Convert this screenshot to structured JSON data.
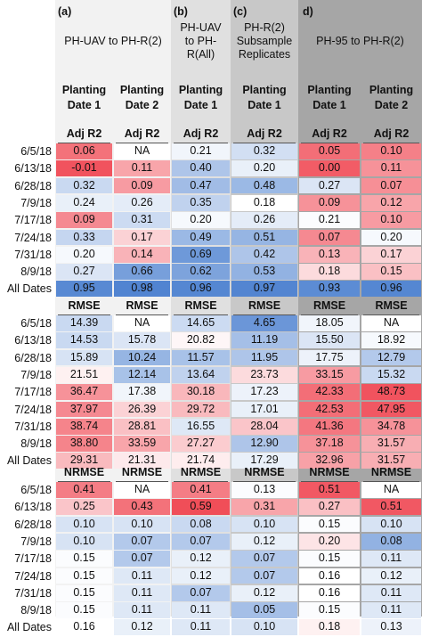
{
  "panels": [
    {
      "tag": "(a)",
      "title": "PH-UAV to PH-R(2)",
      "color": "#f2f2f2"
    },
    {
      "tag": "(b)",
      "title": "PH-UAV to PH-R(All)",
      "title_lines": [
        "PH-UAV",
        "to PH-",
        "R(All)"
      ],
      "color": "#e0e0e0"
    },
    {
      "tag": "(c)",
      "title": "PH-R(2) Subsample Replicates",
      "title_lines": [
        "PH-R(2)",
        "Subsample",
        "Replicates"
      ],
      "color": "#c8c8c8"
    },
    {
      "tag": "d)",
      "title": "PH-95 to PH-R(2)",
      "color": "#a6a6a6"
    }
  ],
  "column_headers": [
    [
      "Planting",
      "Date 1"
    ],
    [
      "Planting",
      "Date 2"
    ],
    [
      "Planting",
      "Date 1"
    ],
    [
      "Planting",
      "Date 1"
    ],
    [
      "Planting",
      "Date 1"
    ],
    [
      "Planting",
      "Date 2"
    ]
  ],
  "row_labels": [
    "6/5/18",
    "6/13/18",
    "6/28/18",
    "7/9/18",
    "7/17/18",
    "7/24/18",
    "7/31/18",
    "8/9/18",
    "All Dates"
  ],
  "chart_data": {
    "type": "heatmap",
    "color_scale": {
      "low": "#4a7fcf",
      "mid": "#ffffff",
      "high": "#f04a55"
    },
    "sections": [
      {
        "metric": "Adj R2",
        "values": [
          [
            "0.06",
            "NA",
            "0.21",
            "0.32",
            "0.05",
            "0.10"
          ],
          [
            "-0.01",
            "0.11",
            "0.40",
            "0.20",
            "0.00",
            "0.11"
          ],
          [
            "0.32",
            "0.09",
            "0.47",
            "0.48",
            "0.27",
            "0.07"
          ],
          [
            "0.24",
            "0.26",
            "0.35",
            "0.18",
            "0.09",
            "0.12"
          ],
          [
            "0.09",
            "0.31",
            "0.20",
            "0.26",
            "0.21",
            "0.10"
          ],
          [
            "0.33",
            "0.17",
            "0.49",
            "0.51",
            "0.07",
            "0.20"
          ],
          [
            "0.20",
            "0.14",
            "0.69",
            "0.42",
            "0.13",
            "0.17"
          ],
          [
            "0.27",
            "0.66",
            "0.62",
            "0.53",
            "0.18",
            "0.15"
          ],
          [
            "0.95",
            "0.98",
            "0.96",
            "0.97",
            "0.93",
            "0.96"
          ]
        ],
        "fill": [
          [
            -0.78,
            null,
            0.08,
            0.25,
            -0.8,
            -0.7
          ],
          [
            -0.95,
            -0.5,
            0.45,
            0.12,
            -0.9,
            -0.6
          ],
          [
            0.3,
            -0.55,
            0.52,
            0.55,
            0.2,
            -0.62
          ],
          [
            0.12,
            0.15,
            0.35,
            0.0,
            -0.6,
            -0.5
          ],
          [
            -0.65,
            0.28,
            0.05,
            0.15,
            0.02,
            -0.55
          ],
          [
            0.32,
            -0.25,
            0.55,
            0.58,
            -0.65,
            0.05
          ],
          [
            0.05,
            -0.42,
            0.8,
            0.45,
            -0.42,
            -0.25
          ],
          [
            0.2,
            0.75,
            0.72,
            0.6,
            -0.2,
            -0.35
          ],
          [
            0.92,
            0.96,
            0.94,
            0.95,
            0.9,
            0.94
          ]
        ]
      },
      {
        "metric": "RMSE",
        "values": [
          [
            "14.39",
            "NA",
            "14.65",
            "4.65",
            "18.05",
            "NA"
          ],
          [
            "14.53",
            "15.78",
            "20.82",
            "11.19",
            "15.50",
            "18.92"
          ],
          [
            "15.89",
            "10.24",
            "11.57",
            "11.95",
            "17.75",
            "12.79"
          ],
          [
            "21.51",
            "12.14",
            "13.64",
            "23.73",
            "33.15",
            "15.32"
          ],
          [
            "36.47",
            "17.38",
            "30.18",
            "17.23",
            "42.33",
            "48.73"
          ],
          [
            "37.97",
            "26.39",
            "29.72",
            "17.01",
            "42.53",
            "47.95"
          ],
          [
            "38.74",
            "28.81",
            "16.55",
            "28.04",
            "41.36",
            "34.78"
          ],
          [
            "38.80",
            "33.59",
            "27.27",
            "12.90",
            "37.18",
            "31.57"
          ],
          [
            "29.31",
            "21.31",
            "21.74",
            "17.29",
            "32.96",
            "31.57"
          ]
        ],
        "fill": [
          [
            0.3,
            null,
            0.28,
            0.82,
            0.08,
            null
          ],
          [
            0.3,
            0.2,
            -0.05,
            0.5,
            0.2,
            0.05
          ],
          [
            0.22,
            0.58,
            0.48,
            0.45,
            0.1,
            0.42
          ],
          [
            -0.08,
            0.48,
            0.35,
            -0.2,
            -0.55,
            0.3
          ],
          [
            -0.6,
            0.08,
            -0.4,
            0.1,
            -0.8,
            -0.95
          ],
          [
            -0.65,
            -0.25,
            -0.38,
            0.12,
            -0.8,
            -0.92
          ],
          [
            -0.68,
            -0.35,
            0.18,
            -0.32,
            -0.75,
            -0.6
          ],
          [
            -0.68,
            -0.5,
            -0.28,
            0.45,
            -0.6,
            -0.45
          ],
          [
            -0.38,
            -0.12,
            -0.1,
            0.12,
            -0.52,
            -0.45
          ]
        ]
      },
      {
        "metric": "NRMSE",
        "values": [
          [
            "0.41",
            "NA",
            "0.41",
            "0.13",
            "0.51",
            "NA"
          ],
          [
            "0.25",
            "0.43",
            "0.59",
            "0.31",
            "0.27",
            "0.51"
          ],
          [
            "0.10",
            "0.10",
            "0.08",
            "0.10",
            "0.15",
            "0.10"
          ],
          [
            "0.10",
            "0.07",
            "0.07",
            "0.12",
            "0.20",
            "0.08"
          ],
          [
            "0.15",
            "0.07",
            "0.12",
            "0.07",
            "0.15",
            "0.11"
          ],
          [
            "0.15",
            "0.11",
            "0.12",
            "0.07",
            "0.16",
            "0.12"
          ],
          [
            "0.15",
            "0.11",
            "0.07",
            "0.12",
            "0.16",
            "0.11"
          ],
          [
            "0.15",
            "0.11",
            "0.11",
            "0.05",
            "0.15",
            "0.11"
          ],
          [
            "0.16",
            "0.12",
            "0.11",
            "0.10",
            "0.18",
            "0.13"
          ]
        ],
        "fill": [
          [
            -0.72,
            null,
            -0.72,
            0.02,
            -0.92,
            null
          ],
          [
            -0.32,
            -0.78,
            -0.98,
            -0.5,
            -0.35,
            -0.92
          ],
          [
            0.22,
            0.22,
            0.3,
            0.22,
            0.02,
            0.22
          ],
          [
            0.22,
            0.42,
            0.42,
            0.12,
            -0.15,
            0.6
          ],
          [
            0.02,
            0.42,
            0.12,
            0.42,
            0.02,
            0.18
          ],
          [
            0.02,
            0.18,
            0.12,
            0.42,
            0.0,
            0.12
          ],
          [
            0.02,
            0.18,
            0.42,
            0.12,
            0.0,
            0.18
          ],
          [
            0.02,
            0.18,
            0.18,
            0.5,
            0.02,
            0.18
          ],
          [
            0.0,
            0.12,
            0.18,
            0.22,
            -0.08,
            0.1
          ]
        ]
      }
    ]
  }
}
